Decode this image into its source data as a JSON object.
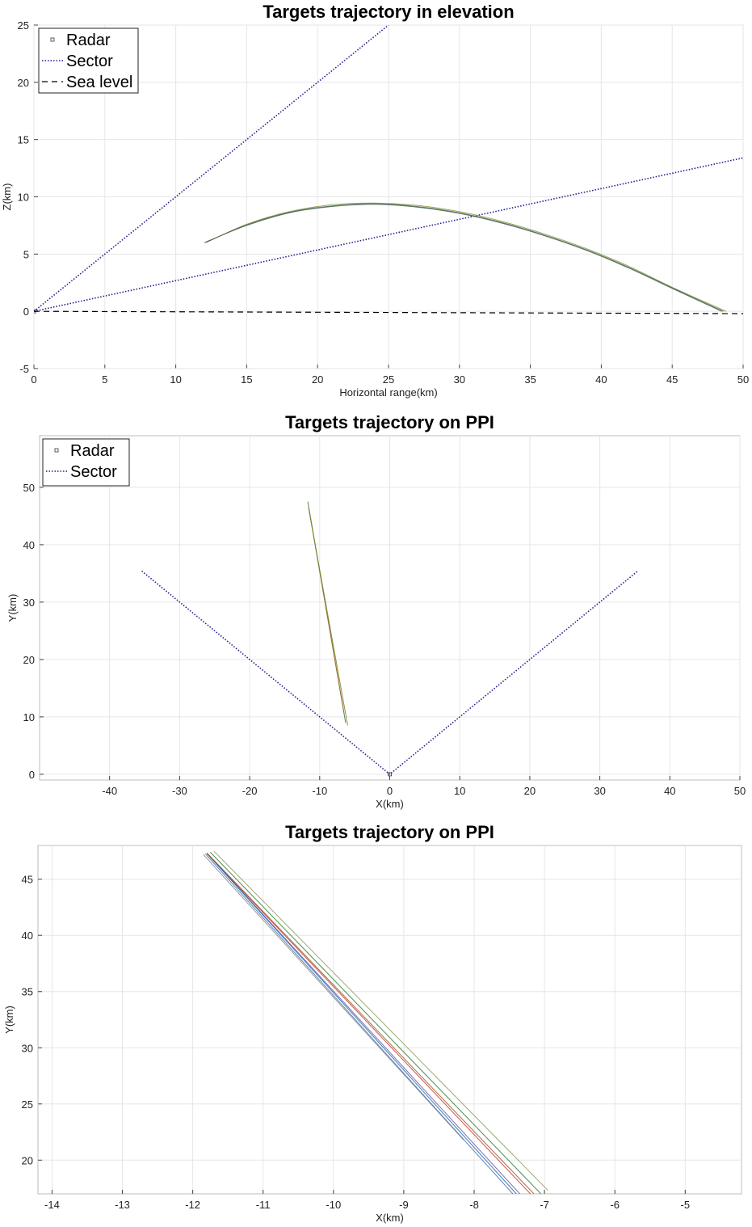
{
  "chart_data": [
    {
      "type": "line",
      "title": "Targets trajectory in elevation",
      "xlabel": "Horizontal range(km)",
      "ylabel": "Z(km)",
      "xlim": [
        0,
        50
      ],
      "ylim": [
        -5,
        25
      ],
      "xticks": [
        0,
        5,
        10,
        15,
        20,
        25,
        30,
        35,
        40,
        45,
        50
      ],
      "yticks": [
        -5,
        0,
        5,
        10,
        15,
        20,
        25
      ],
      "grid": true,
      "legend": {
        "placement": "top-left",
        "entries": [
          {
            "label": "Radar",
            "style": "square-marker",
            "color": "#333333"
          },
          {
            "label": "Sector",
            "style": "dotted",
            "color": "#1f1f8f"
          },
          {
            "label": "Sea level",
            "style": "dashed",
            "color": "#000000"
          }
        ]
      },
      "series": [
        {
          "name": "Radar",
          "kind": "marker",
          "color": "#333333",
          "x": [
            0
          ],
          "y": [
            0
          ]
        },
        {
          "name": "Sector",
          "kind": "dotted",
          "color": "#1f1f8f",
          "x": [
            0,
            25
          ],
          "y": [
            0,
            25
          ]
        },
        {
          "kind": "dotted",
          "color": "#1f1f8f",
          "x": [
            0,
            50
          ],
          "y": [
            0,
            13.4
          ]
        },
        {
          "name": "Sea level",
          "kind": "dashed",
          "color": "#000000",
          "x": [
            0,
            50
          ],
          "y": [
            0,
            -0.2
          ]
        },
        {
          "kind": "trajectory",
          "color": "#3d6b4f",
          "x": [
            12,
            15,
            18,
            21,
            24,
            27,
            30,
            33,
            36,
            39,
            42,
            45,
            48.5
          ],
          "y": [
            6.0,
            7.5,
            8.6,
            9.15,
            9.35,
            9.1,
            8.55,
            7.7,
            6.6,
            5.3,
            3.75,
            2.0,
            0
          ]
        },
        {
          "kind": "trajectory",
          "color": "#7a9a3a",
          "x": [
            12.2,
            15,
            18,
            21,
            24,
            27,
            30,
            33,
            36,
            39,
            42,
            45,
            48.8
          ],
          "y": [
            6.05,
            7.6,
            8.7,
            9.3,
            9.45,
            9.25,
            8.7,
            7.85,
            6.75,
            5.45,
            3.9,
            2.1,
            0
          ]
        },
        {
          "kind": "trajectory",
          "color": "#5a5a5a",
          "x": [
            12.1,
            15,
            18,
            21,
            24,
            27,
            30,
            33,
            36,
            39,
            42,
            45,
            48.6
          ],
          "y": [
            6.0,
            7.55,
            8.65,
            9.2,
            9.4,
            9.15,
            8.6,
            7.75,
            6.65,
            5.35,
            3.8,
            2.05,
            0
          ]
        }
      ]
    },
    {
      "type": "line",
      "title": "Targets trajectory on PPI",
      "xlabel": "X(km)",
      "ylabel": "Y(km)",
      "xlim": [
        -50,
        50
      ],
      "ylim": [
        -1,
        59
      ],
      "xticks": [
        -40,
        -30,
        -20,
        -10,
        0,
        10,
        20,
        30,
        40,
        50
      ],
      "yticks": [
        0,
        10,
        20,
        30,
        40,
        50
      ],
      "grid": true,
      "legend": {
        "placement": "top-left",
        "entries": [
          {
            "label": "Radar",
            "style": "square-marker",
            "color": "#333333"
          },
          {
            "label": "Sector",
            "style": "dotted",
            "color": "#1f1f8f"
          }
        ]
      },
      "series": [
        {
          "name": "Radar",
          "kind": "marker",
          "color": "#333333",
          "x": [
            0
          ],
          "y": [
            0
          ]
        },
        {
          "name": "Sector",
          "kind": "dotted",
          "color": "#1f1f8f",
          "x": [
            -35.4,
            0,
            35.4
          ],
          "y": [
            35.4,
            0,
            35.4
          ]
        },
        {
          "kind": "trajectory",
          "color": "#3d6b4f",
          "x": [
            -11.7,
            -6.3
          ],
          "y": [
            47.5,
            9.0
          ]
        },
        {
          "kind": "trajectory",
          "color": "#b5651d",
          "x": [
            -11.5,
            -6.5
          ],
          "y": [
            46.0,
            10.5
          ]
        },
        {
          "kind": "trajectory",
          "color": "#6a8a2a",
          "x": [
            -11.6,
            -6.0
          ],
          "y": [
            46.5,
            8.5
          ]
        }
      ]
    },
    {
      "type": "line",
      "title": "Targets trajectory on PPI",
      "xlabel": "X(km)",
      "ylabel": "Y(km)",
      "xlim": [
        -14.2,
        -4.2
      ],
      "ylim": [
        17,
        48
      ],
      "xticks": [
        -14,
        -13,
        -12,
        -11,
        -10,
        -9,
        -8,
        -7,
        -6,
        -5
      ],
      "yticks": [
        20,
        25,
        30,
        35,
        40,
        45
      ],
      "grid": true,
      "series": [
        {
          "kind": "trajectory",
          "color": "#c0392b",
          "x": [
            -11.8,
            -7.2
          ],
          "y": [
            47.3,
            17
          ]
        },
        {
          "kind": "trajectory",
          "color": "#6b5b95",
          "x": [
            -11.8,
            -7.35
          ],
          "y": [
            47.3,
            17
          ]
        },
        {
          "kind": "trajectory",
          "color": "#2e7d32",
          "x": [
            -11.75,
            -7.05
          ],
          "y": [
            47.4,
            17
          ]
        },
        {
          "kind": "trajectory",
          "color": "#1565c0",
          "x": [
            -11.8,
            -7.4
          ],
          "y": [
            47.3,
            17
          ]
        },
        {
          "kind": "trajectory",
          "color": "#8a9a5b",
          "x": [
            -11.7,
            -6.95
          ],
          "y": [
            47.5,
            17.3
          ]
        },
        {
          "kind": "trajectory",
          "color": "#7f8c8d",
          "x": [
            -11.85,
            -8.15
          ],
          "y": [
            47.2,
            21.8
          ]
        },
        {
          "kind": "trajectory",
          "color": "#a0522d",
          "x": [
            -11.8,
            -7.15
          ],
          "y": [
            47.35,
            17
          ]
        },
        {
          "kind": "trajectory",
          "color": "#4a6fa5",
          "x": [
            -11.82,
            -7.45
          ],
          "y": [
            47.25,
            17
          ]
        }
      ]
    }
  ]
}
